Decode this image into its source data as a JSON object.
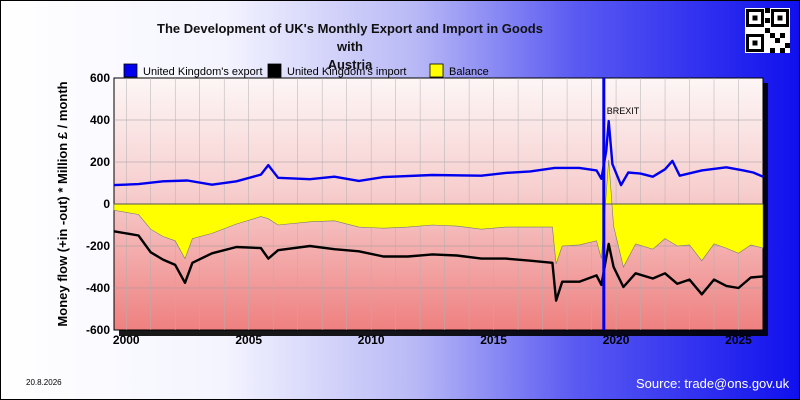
{
  "title_line1": "The Development of UK's Monthly Export and Import in Goods with",
  "title_line2": "Austria",
  "date_label": "20.8.2026",
  "source_label": "Source: trade@ons.gov.uk",
  "chart_data": {
    "type": "line",
    "ylabel": "Money flow (+in -out) * Million £ / month",
    "xlim": [
      1999.5,
      2026.0
    ],
    "ylim": [
      -600,
      600
    ],
    "y_ticks": [
      600,
      400,
      200,
      0,
      -200,
      -400,
      -600
    ],
    "x_ticks": [
      2000,
      2005,
      2010,
      2015,
      2020,
      2025
    ],
    "grid": true,
    "legend_position": "top",
    "annotation": {
      "text": "BREXIT",
      "x": 2019.5
    },
    "series": [
      {
        "name": "United Kingdom's export",
        "color": "#0000ee",
        "points": [
          [
            1999.5,
            90
          ],
          [
            2000.5,
            95
          ],
          [
            2001.5,
            108
          ],
          [
            2002.5,
            112
          ],
          [
            2003.5,
            92
          ],
          [
            2004.5,
            108
          ],
          [
            2005.5,
            140
          ],
          [
            2005.8,
            185
          ],
          [
            2006.2,
            125
          ],
          [
            2007.5,
            118
          ],
          [
            2008.5,
            130
          ],
          [
            2009.5,
            110
          ],
          [
            2010.5,
            128
          ],
          [
            2012.5,
            138
          ],
          [
            2014.5,
            135
          ],
          [
            2015.5,
            148
          ],
          [
            2016.5,
            155
          ],
          [
            2017.5,
            172
          ],
          [
            2018.5,
            172
          ],
          [
            2019.2,
            160
          ],
          [
            2019.4,
            120
          ],
          [
            2019.6,
            255
          ],
          [
            2019.7,
            395
          ],
          [
            2019.85,
            190
          ],
          [
            2020.2,
            90
          ],
          [
            2020.5,
            150
          ],
          [
            2021.0,
            145
          ],
          [
            2021.5,
            130
          ],
          [
            2022.0,
            165
          ],
          [
            2022.3,
            205
          ],
          [
            2022.6,
            135
          ],
          [
            2023.5,
            160
          ],
          [
            2024.5,
            175
          ],
          [
            2025.2,
            160
          ],
          [
            2025.6,
            150
          ],
          [
            2026.0,
            130
          ]
        ]
      },
      {
        "name": "United Kingdom's import",
        "color": "#000000",
        "points": [
          [
            1999.5,
            -130
          ],
          [
            2000.5,
            -150
          ],
          [
            2001.0,
            -230
          ],
          [
            2001.5,
            -265
          ],
          [
            2002.0,
            -290
          ],
          [
            2002.4,
            -375
          ],
          [
            2002.7,
            -280
          ],
          [
            2003.5,
            -235
          ],
          [
            2004.5,
            -205
          ],
          [
            2005.5,
            -210
          ],
          [
            2005.8,
            -260
          ],
          [
            2006.2,
            -220
          ],
          [
            2007.5,
            -200
          ],
          [
            2008.5,
            -215
          ],
          [
            2009.5,
            -225
          ],
          [
            2010.5,
            -250
          ],
          [
            2011.5,
            -250
          ],
          [
            2012.5,
            -240
          ],
          [
            2013.5,
            -245
          ],
          [
            2014.5,
            -260
          ],
          [
            2015.5,
            -260
          ],
          [
            2016.5,
            -270
          ],
          [
            2017.4,
            -280
          ],
          [
            2017.55,
            -460
          ],
          [
            2017.8,
            -370
          ],
          [
            2018.5,
            -370
          ],
          [
            2019.2,
            -340
          ],
          [
            2019.4,
            -385
          ],
          [
            2019.7,
            -190
          ],
          [
            2019.9,
            -300
          ],
          [
            2020.3,
            -395
          ],
          [
            2020.8,
            -330
          ],
          [
            2021.5,
            -355
          ],
          [
            2022.0,
            -330
          ],
          [
            2022.5,
            -380
          ],
          [
            2023.0,
            -360
          ],
          [
            2023.5,
            -430
          ],
          [
            2024.0,
            -360
          ],
          [
            2024.5,
            -390
          ],
          [
            2025.0,
            -400
          ],
          [
            2025.5,
            -350
          ],
          [
            2026.0,
            -345
          ]
        ]
      },
      {
        "name": "Balance",
        "color": "#ffff00",
        "points": [
          [
            1999.5,
            -30
          ],
          [
            2000.5,
            -50
          ],
          [
            2001.0,
            -120
          ],
          [
            2001.5,
            -155
          ],
          [
            2002.0,
            -175
          ],
          [
            2002.4,
            -260
          ],
          [
            2002.7,
            -165
          ],
          [
            2003.5,
            -140
          ],
          [
            2004.5,
            -95
          ],
          [
            2005.5,
            -60
          ],
          [
            2005.8,
            -70
          ],
          [
            2006.2,
            -100
          ],
          [
            2007.5,
            -85
          ],
          [
            2008.5,
            -80
          ],
          [
            2009.5,
            -110
          ],
          [
            2010.5,
            -115
          ],
          [
            2011.5,
            -110
          ],
          [
            2012.5,
            -100
          ],
          [
            2013.5,
            -105
          ],
          [
            2014.5,
            -120
          ],
          [
            2015.5,
            -110
          ],
          [
            2016.5,
            -110
          ],
          [
            2017.4,
            -110
          ],
          [
            2017.55,
            -285
          ],
          [
            2017.8,
            -200
          ],
          [
            2018.5,
            -195
          ],
          [
            2019.2,
            -175
          ],
          [
            2019.4,
            -260
          ],
          [
            2019.7,
            210
          ],
          [
            2019.9,
            -105
          ],
          [
            2020.3,
            -300
          ],
          [
            2020.8,
            -190
          ],
          [
            2021.5,
            -215
          ],
          [
            2022.0,
            -165
          ],
          [
            2022.5,
            -200
          ],
          [
            2023.0,
            -195
          ],
          [
            2023.5,
            -270
          ],
          [
            2024.0,
            -190
          ],
          [
            2024.5,
            -210
          ],
          [
            2025.0,
            -235
          ],
          [
            2025.5,
            -195
          ],
          [
            2026.0,
            -210
          ]
        ]
      }
    ]
  }
}
